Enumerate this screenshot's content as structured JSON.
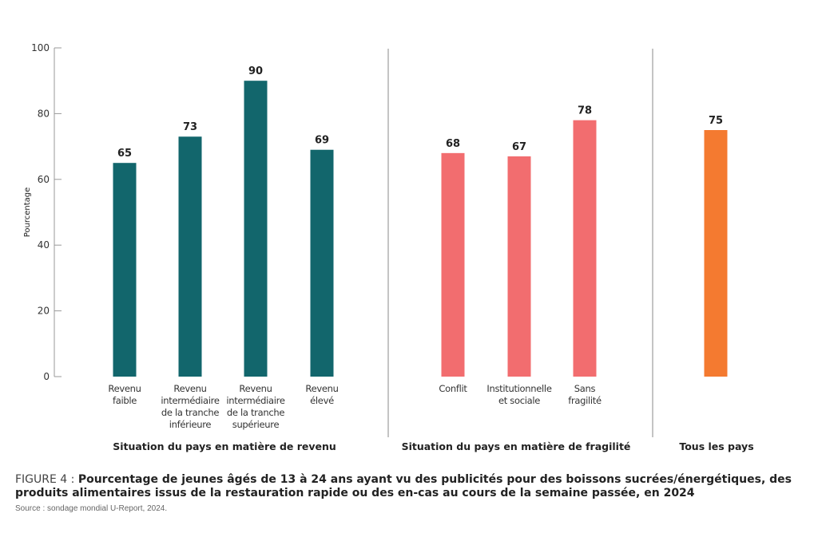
{
  "chart_data": {
    "type": "bar",
    "ylabel": "Pourcentage",
    "ylim": [
      0,
      100
    ],
    "yticks": [
      0,
      20,
      40,
      60,
      80,
      100
    ],
    "grid": false,
    "groups": [
      {
        "name": "Situation du pays en matière de revenu",
        "color": "#12666c",
        "categories": [
          [
            "Revenu",
            "faible"
          ],
          [
            "Revenu",
            "intermédiaire",
            "de la tranche",
            "inférieure"
          ],
          [
            "Revenu",
            "intermédiaire",
            "de la tranche",
            "supérieure"
          ],
          [
            "Revenu",
            "élevé"
          ]
        ],
        "values": [
          65,
          73,
          90,
          69
        ]
      },
      {
        "name": "Situation du pays en matière de fragilité",
        "color": "#f26d6f",
        "categories": [
          [
            "Conflit"
          ],
          [
            "Institutionnelle",
            "et sociale"
          ],
          [
            "Sans",
            "fragilité"
          ]
        ],
        "values": [
          68,
          67,
          78
        ]
      },
      {
        "name": "Tous les pays",
        "color": "#f47a30",
        "categories": [
          [
            ""
          ]
        ],
        "values": [
          75
        ]
      }
    ]
  },
  "caption": {
    "figure": "FIGURE 4 : ",
    "title": "Pourcentage de jeunes âgés de 13 à 24 ans ayant vu des publicités pour des boissons sucrées/énergétiques, des produits alimentaires issus de la restauration rapide ou des en-cas au cours de la semaine passée, en 2024",
    "source": "Source : sondage mondial U-Report, 2024."
  }
}
